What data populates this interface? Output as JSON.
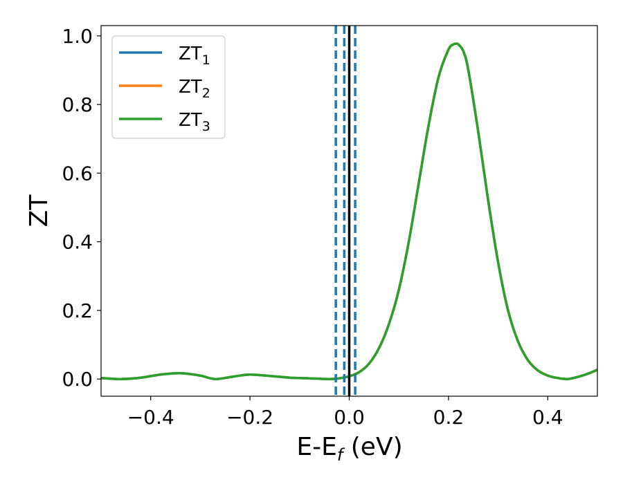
{
  "chart_data": {
    "type": "line",
    "xlabel": {
      "main": "E-E",
      "sub": "f",
      "suffix": " (eV)"
    },
    "ylabel": "ZT",
    "xlim": [
      -0.5,
      0.5
    ],
    "ylim": [
      -0.05,
      1.03
    ],
    "x_ticks": [
      -0.4,
      -0.2,
      0.0,
      0.2,
      0.4
    ],
    "x_tick_labels": [
      "−0.4",
      "−0.2",
      "0.0",
      "0.2",
      "0.4"
    ],
    "y_ticks": [
      0.0,
      0.2,
      0.4,
      0.6,
      0.8,
      1.0
    ],
    "y_tick_labels": [
      "0.0",
      "0.2",
      "0.4",
      "0.6",
      "0.8",
      "1.0"
    ],
    "grid": false,
    "legend_position": "top-left",
    "series": [
      {
        "name": "ZT",
        "sub": "1",
        "color": "#1f77b4"
      },
      {
        "name": "ZT",
        "sub": "2",
        "color": "#ff7f0e"
      },
      {
        "name": "ZT",
        "sub": "3",
        "color": "#2ca02c"
      }
    ],
    "curve": {
      "x": [
        -0.5,
        -0.46,
        -0.42,
        -0.38,
        -0.34,
        -0.3,
        -0.27,
        -0.23,
        -0.2,
        -0.16,
        -0.12,
        -0.08,
        -0.04,
        -0.02,
        0.0,
        0.02,
        0.04,
        0.06,
        0.08,
        0.1,
        0.12,
        0.14,
        0.16,
        0.18,
        0.2,
        0.21,
        0.215,
        0.22,
        0.23,
        0.24,
        0.26,
        0.28,
        0.3,
        0.32,
        0.34,
        0.36,
        0.38,
        0.4,
        0.42,
        0.44,
        0.46,
        0.48,
        0.5
      ],
      "y": [
        0.003,
        0.0,
        0.004,
        0.013,
        0.017,
        0.01,
        0.0,
        0.008,
        0.013,
        0.009,
        0.004,
        0.002,
        0.0,
        0.002,
        0.008,
        0.02,
        0.045,
        0.09,
        0.16,
        0.26,
        0.4,
        0.57,
        0.74,
        0.88,
        0.96,
        0.975,
        0.977,
        0.975,
        0.955,
        0.9,
        0.72,
        0.52,
        0.34,
        0.2,
        0.11,
        0.055,
        0.025,
        0.01,
        0.003,
        0.0,
        0.006,
        0.015,
        0.027
      ]
    },
    "reference_lines": [
      {
        "x": 0.0,
        "color": "#000000",
        "style": "solid"
      },
      {
        "x": -0.027,
        "color": "#1f77b4",
        "style": "dashed"
      },
      {
        "x": -0.01,
        "color": "#1f77b4",
        "style": "dashed"
      },
      {
        "x": 0.012,
        "color": "#1f77b4",
        "style": "dashed"
      }
    ]
  }
}
